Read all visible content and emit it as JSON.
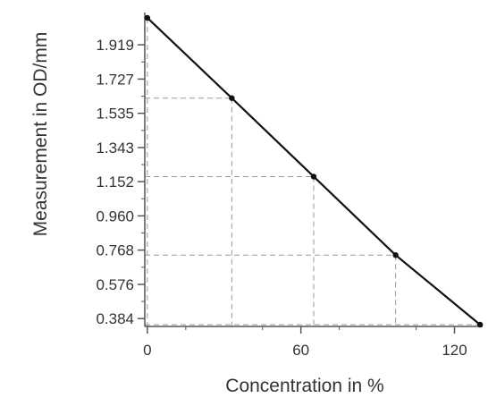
{
  "chart_data": {
    "type": "line",
    "xlabel": "Concentration in %",
    "ylabel": "Measurement in OD/mm",
    "xlim": [
      -1,
      131
    ],
    "ylim": [
      0.34,
      2.1
    ],
    "x_ticks": [
      0,
      60,
      120
    ],
    "x_tick_labels": [
      "0",
      "60",
      "120"
    ],
    "y_ticks": [
      0.384,
      0.576,
      0.768,
      0.96,
      1.152,
      1.343,
      1.535,
      1.727,
      1.919
    ],
    "y_tick_labels": [
      "0.384",
      "0.576",
      "0.768",
      "0.960",
      "1.152",
      "1.343",
      "1.535",
      "1.727",
      "1.919"
    ],
    "series": [
      {
        "x": [
          0,
          33,
          65,
          97,
          130
        ],
        "y": [
          2.07,
          1.62,
          1.18,
          0.74,
          0.35
        ]
      }
    ],
    "grid": false,
    "colors": {
      "line": "#111111",
      "guide": "#9a9a9a",
      "axis": "#555555",
      "text": "#333333"
    }
  }
}
